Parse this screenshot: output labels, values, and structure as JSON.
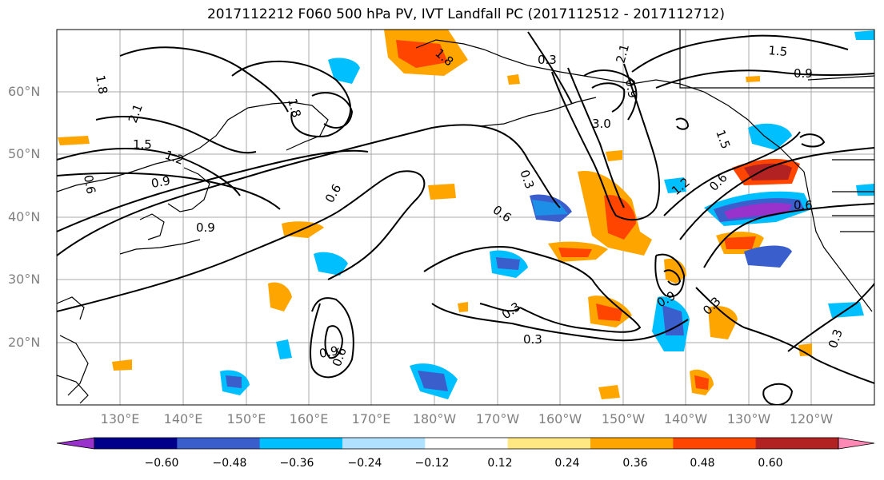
{
  "title": "2017112212 F060 500 hPa PV, IVT Landfall PC (2017112512 - 2017112712)",
  "lat_labels": [
    "60°N",
    "50°N",
    "40°N",
    "30°N",
    "20°N"
  ],
  "lon_labels": [
    "130°E",
    "140°E",
    "150°E",
    "160°E",
    "170°E",
    "180°W",
    "170°W",
    "160°W",
    "150°W",
    "140°W",
    "130°W",
    "120°W"
  ],
  "colorbar": {
    "ticks": [
      "−0.60",
      "−0.48",
      "−0.36",
      "−0.24",
      "−0.12",
      "0.12",
      "0.24",
      "0.36",
      "0.48",
      "0.60"
    ],
    "colors": [
      "#9932cc",
      "#00008b",
      "#3a5fcd",
      "#00bfff",
      "#b0e2ff",
      "#ffffff",
      "#ffe882",
      "#ffa500",
      "#ff4500",
      "#b22222",
      "#ff89b5"
    ]
  },
  "contour_labels": {
    "c1": "1.8",
    "c2": "2.1",
    "c3": "1.5",
    "c4": "1.2",
    "c5": "0.9",
    "c6": "0.9",
    "c7": "0.6",
    "c8": "0.6",
    "c9": "0.3",
    "c10": "0.3",
    "c11": "0.3",
    "c12": "0.9",
    "c13": "0.6",
    "c14": "1.2",
    "c15": "0.6",
    "c16": "0.6",
    "c17": "0.9",
    "c18": "0.3",
    "c19": "1.5",
    "c20": "0.9",
    "c21": "1.5",
    "c22": "0.3",
    "c23": "2.1",
    "c24": "1.8",
    "c25": "3.0",
    "c26": "1.8",
    "c27": "0.3",
    "c28": "0.9",
    "c29": "0.6"
  }
}
